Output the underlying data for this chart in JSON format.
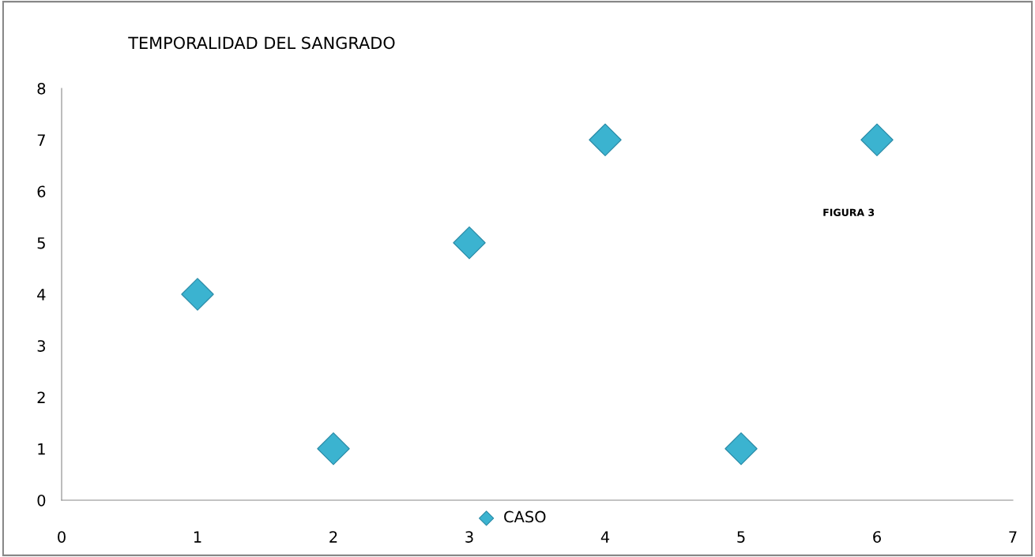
{
  "chart_data": {
    "type": "scatter",
    "title": "TEMPORALIDAD DEL SANGRADO",
    "x": [
      1,
      2,
      3,
      4,
      5,
      6
    ],
    "series": [
      {
        "name": "CASO",
        "color": "#3bb3d0",
        "values": [
          4,
          1,
          5,
          7,
          1,
          7
        ]
      }
    ],
    "xlim": [
      0,
      7
    ],
    "xticks": [
      0,
      1,
      2,
      3,
      4,
      5,
      6,
      7
    ],
    "ylim": [
      0,
      8
    ],
    "yticks": [
      0,
      1,
      2,
      3,
      4,
      5,
      6,
      7,
      8
    ],
    "marker": "diamond",
    "legend": "bottom",
    "grid": false,
    "annotations": [
      "FIGURA 3"
    ]
  }
}
